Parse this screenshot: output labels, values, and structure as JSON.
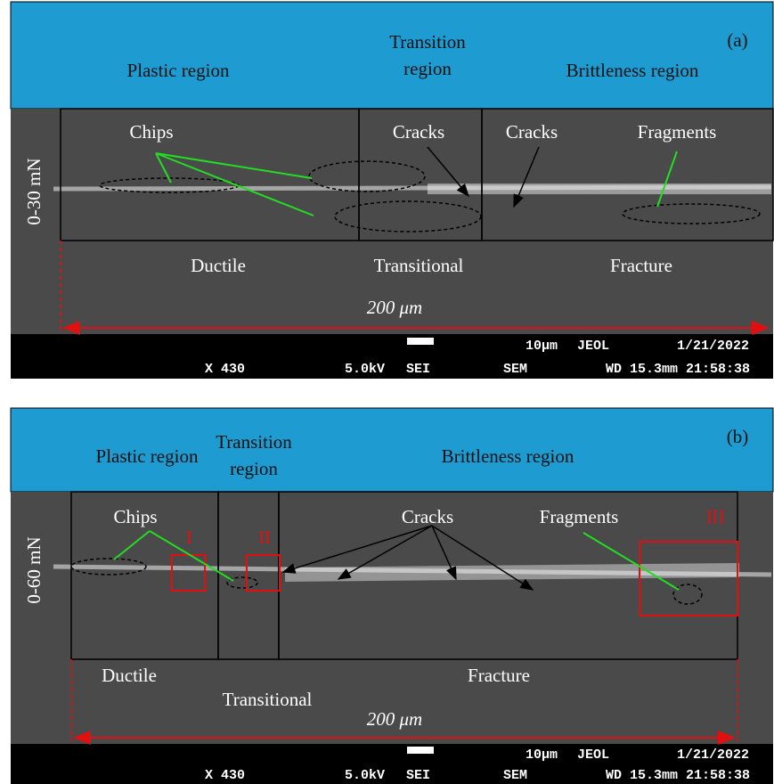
{
  "panels": [
    {
      "label": "(a)",
      "load": "0-30 mN",
      "regions": {
        "plastic": "Plastic region",
        "transition": [
          "Transition",
          "region"
        ],
        "brittleness": "Brittleness region"
      },
      "annotations": {
        "chips": "Chips",
        "cracks_1": "Cracks",
        "cracks_2": "Cracks",
        "fragments": "Fragments"
      },
      "zones": {
        "ductile": "Ductile",
        "transitional": "Transitional",
        "fracture": "Fracture"
      },
      "scale": "200 μm",
      "sem_info": {
        "marker": "10μm",
        "maker": "JEOL",
        "date": "1/21/2022",
        "magnification": "X 430",
        "voltage": "5.0kV",
        "detector": "SEI",
        "mode": "SEM",
        "wd_time": "WD 15.3mm 21:58:38"
      }
    },
    {
      "label": "(b)",
      "load": "0-60 mN",
      "regions": {
        "plastic": "Plastic region",
        "transition": [
          "Transition",
          "region"
        ],
        "brittleness": "Brittleness region"
      },
      "annotations": {
        "chips": "Chips",
        "cracks": "Cracks",
        "fragments": "Fragments",
        "box_1": "I",
        "box_2": "II",
        "box_3": "III"
      },
      "zones": {
        "ductile": "Ductile",
        "transitional": "Transitional",
        "fracture": "Fracture"
      },
      "scale": "200 μm",
      "sem_info": {
        "marker": "10μm",
        "maker": "JEOL",
        "date": "1/21/2022",
        "magnification": "X 430",
        "voltage": "5.0kV",
        "detector": "SEI",
        "mode": "SEM",
        "wd_time": "WD 15.3mm 21:58:38"
      }
    }
  ]
}
